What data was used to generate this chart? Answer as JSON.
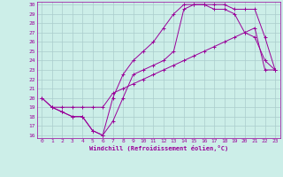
{
  "xlabel": "Windchill (Refroidissement éolien,°C)",
  "bg_color": "#cceee8",
  "line_color": "#990099",
  "grid_color": "#aacccc",
  "xlim": [
    -0.5,
    23.5
  ],
  "ylim": [
    15.7,
    30.3
  ],
  "xticks": [
    0,
    1,
    2,
    3,
    4,
    5,
    6,
    7,
    8,
    9,
    10,
    11,
    12,
    13,
    14,
    15,
    16,
    17,
    18,
    19,
    20,
    21,
    22,
    23
  ],
  "yticks": [
    16,
    17,
    18,
    19,
    20,
    21,
    22,
    23,
    24,
    25,
    26,
    27,
    28,
    29,
    30
  ],
  "series1_x": [
    0,
    1,
    2,
    3,
    4,
    5,
    6,
    7,
    8,
    9,
    10,
    11,
    12,
    13,
    14,
    15,
    16,
    17,
    18,
    19,
    20,
    21,
    22,
    23
  ],
  "series1_y": [
    20,
    19,
    18.5,
    18,
    18,
    16.5,
    16,
    17.5,
    20,
    22.5,
    23,
    23.5,
    24,
    25,
    29.5,
    30,
    30,
    29.5,
    29.5,
    29,
    27,
    26.5,
    24,
    23
  ],
  "series2_x": [
    0,
    1,
    2,
    3,
    4,
    5,
    6,
    7,
    8,
    9,
    10,
    11,
    12,
    13,
    14,
    15,
    16,
    17,
    18,
    19,
    20,
    21,
    22,
    23
  ],
  "series2_y": [
    20,
    19,
    18.5,
    18,
    18,
    16.5,
    16,
    20,
    22.5,
    24,
    25,
    26,
    27.5,
    29,
    30,
    30,
    30,
    30,
    30,
    29.5,
    29.5,
    29.5,
    26.5,
    23
  ],
  "series3_x": [
    1,
    2,
    3,
    4,
    5,
    6,
    7,
    8,
    9,
    10,
    11,
    12,
    13,
    14,
    15,
    16,
    17,
    18,
    19,
    20,
    21,
    22,
    23
  ],
  "series3_y": [
    19,
    19,
    19,
    19,
    19,
    19,
    20.5,
    21,
    21.5,
    22,
    22.5,
    23,
    23.5,
    24,
    24.5,
    25,
    25.5,
    26,
    26.5,
    27,
    27.5,
    23,
    23
  ]
}
